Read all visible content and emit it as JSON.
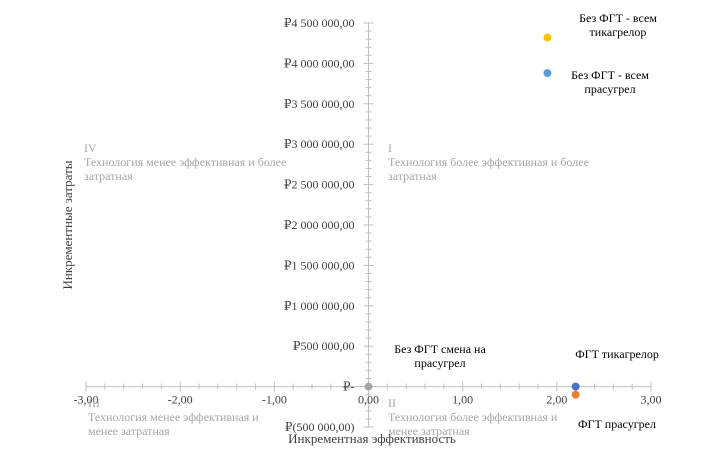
{
  "chart_data": {
    "type": "scatter",
    "title": "",
    "xlabel": "Инкрементная эффективность",
    "ylabel": "Инкрементные затраты",
    "xlim": [
      -3,
      3
    ],
    "ylim": [
      -500000,
      4500000
    ],
    "x_ticks": [
      {
        "value": -3,
        "label": "-3,00"
      },
      {
        "value": -2,
        "label": "-2,00"
      },
      {
        "value": -1,
        "label": "-1,00"
      },
      {
        "value": 0,
        "label": "0,00"
      },
      {
        "value": 1,
        "label": "1,00"
      },
      {
        "value": 2,
        "label": "2,00"
      },
      {
        "value": 3,
        "label": "3,00"
      }
    ],
    "y_ticks": [
      {
        "value": 4500000,
        "label": "₽4 500 000,00"
      },
      {
        "value": 4000000,
        "label": "₽4 000 000,00"
      },
      {
        "value": 3500000,
        "label": "₽3 500 000,00"
      },
      {
        "value": 3000000,
        "label": "₽3 000 000,00"
      },
      {
        "value": 2500000,
        "label": "₽2 500 000,00"
      },
      {
        "value": 2000000,
        "label": "₽2 000 000,00"
      },
      {
        "value": 1500000,
        "label": "₽1 500 000,00"
      },
      {
        "value": 1000000,
        "label": "₽1 000 000,00"
      },
      {
        "value": 500000,
        "label": "₽500 000,00"
      },
      {
        "value": 0,
        "label": "₽-"
      },
      {
        "value": -500000,
        "label": "₽(500 000,00)"
      }
    ],
    "points": [
      {
        "label": "Без ФГТ - всем тикагрелор",
        "x": 1.9,
        "y": 4320000,
        "color": "#FFC000"
      },
      {
        "label": "Без ФГТ - всем прасугрел",
        "x": 1.9,
        "y": 3880000,
        "color": "#5B9BD5"
      },
      {
        "label": "Без ФГТ смена на прасугрел",
        "x": 0.0,
        "y": 0,
        "color": "#A5A5A5"
      },
      {
        "label": "ФГТ тикагрелор",
        "x": 2.2,
        "y": 0,
        "color": "#4472C4"
      },
      {
        "label": "ФГТ прасугрел",
        "x": 2.2,
        "y": -100000,
        "color": "#ED7D31"
      }
    ],
    "quadrants": [
      {
        "numeral": "I",
        "text": "Технология более эффективная и более затратная"
      },
      {
        "numeral": "II",
        "text": "Технология более эффективная и менее затратная"
      },
      {
        "numeral": "III",
        "text": "Технология менее эффективная и менее затратная"
      },
      {
        "numeral": "IV",
        "text": "Технология менее эффективная и более затратная"
      }
    ],
    "grid": false,
    "legend": "none"
  },
  "colors": {
    "axis": "#BFBFBF",
    "tick_label": "#404040",
    "quadrant_text": "#A6A6A6",
    "point_label": "#000000"
  }
}
